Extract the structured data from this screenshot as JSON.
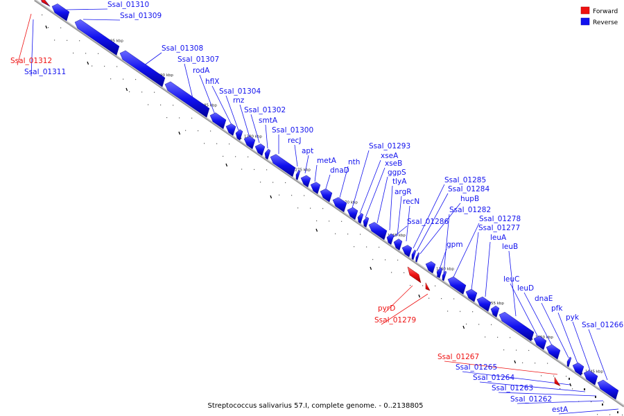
{
  "caption": "Streptococcus salivarius 57.I, complete genome. - 0..2138805",
  "legend": [
    {
      "label": "Forward",
      "color": "#ee1111"
    },
    {
      "label": "Reverse",
      "color": "#1111ee"
    }
  ],
  "colors": {
    "forward": "#ee1111",
    "reverse": "#1111ee",
    "backbone": "#a8a8a8"
  },
  "ticks": [
    {
      "label": "1295 kbp"
    },
    {
      "label": "1290 kbp"
    },
    {
      "label": "1285 kbp"
    },
    {
      "label": "1280 kbp"
    },
    {
      "label": "1275 kbp"
    },
    {
      "label": "1270 kbp"
    },
    {
      "label": "1265 kbp"
    },
    {
      "label": "1260 kbp"
    },
    {
      "label": "1255 kbp"
    },
    {
      "label": "1250 kbp"
    },
    {
      "label": "1245 kbp"
    }
  ],
  "genes": [
    {
      "name": "Ssal_01312",
      "strand": "forward"
    },
    {
      "name": "Ssal_01311",
      "strand": "reverse"
    },
    {
      "name": "Ssal_01310",
      "strand": "reverse"
    },
    {
      "name": "Ssal_01309",
      "strand": "reverse"
    },
    {
      "name": "Ssal_01308",
      "strand": "reverse"
    },
    {
      "name": "Ssal_01307",
      "strand": "reverse"
    },
    {
      "name": "rodA",
      "strand": "reverse"
    },
    {
      "name": "hflX",
      "strand": "reverse"
    },
    {
      "name": "Ssal_01304",
      "strand": "reverse"
    },
    {
      "name": "rnz",
      "strand": "reverse"
    },
    {
      "name": "Ssal_01302",
      "strand": "reverse"
    },
    {
      "name": "smtA",
      "strand": "reverse"
    },
    {
      "name": "Ssal_01300",
      "strand": "reverse"
    },
    {
      "name": "recJ",
      "strand": "reverse"
    },
    {
      "name": "apt",
      "strand": "reverse"
    },
    {
      "name": "metA",
      "strand": "reverse"
    },
    {
      "name": "dnaD",
      "strand": "reverse"
    },
    {
      "name": "nth",
      "strand": "reverse"
    },
    {
      "name": "Ssal_01293",
      "strand": "reverse"
    },
    {
      "name": "xseA",
      "strand": "reverse"
    },
    {
      "name": "xseB",
      "strand": "reverse"
    },
    {
      "name": "ggpS",
      "strand": "reverse"
    },
    {
      "name": "tlyA",
      "strand": "reverse"
    },
    {
      "name": "argR",
      "strand": "reverse"
    },
    {
      "name": "recN",
      "strand": "reverse"
    },
    {
      "name": "Ssal_01285",
      "strand": "reverse"
    },
    {
      "name": "Ssal_01284",
      "strand": "reverse"
    },
    {
      "name": "hupB",
      "strand": "reverse"
    },
    {
      "name": "Ssal_01286",
      "strand": "reverse"
    },
    {
      "name": "Ssal_01282",
      "strand": "reverse"
    },
    {
      "name": "gpm",
      "strand": "reverse"
    },
    {
      "name": "Ssal_01278",
      "strand": "reverse"
    },
    {
      "name": "Ssal_01277",
      "strand": "reverse"
    },
    {
      "name": "leuA",
      "strand": "reverse"
    },
    {
      "name": "leuB",
      "strand": "reverse"
    },
    {
      "name": "pyrD",
      "strand": "forward"
    },
    {
      "name": "Ssal_01279",
      "strand": "forward"
    },
    {
      "name": "leuC",
      "strand": "reverse"
    },
    {
      "name": "leuD",
      "strand": "reverse"
    },
    {
      "name": "dnaE",
      "strand": "reverse"
    },
    {
      "name": "pfk",
      "strand": "reverse"
    },
    {
      "name": "pyk",
      "strand": "reverse"
    },
    {
      "name": "Ssal_01266",
      "strand": "reverse"
    },
    {
      "name": "Ssal_01267",
      "strand": "forward"
    },
    {
      "name": "Ssal_01265",
      "strand": "reverse"
    },
    {
      "name": "Ssal_01264",
      "strand": "reverse"
    },
    {
      "name": "Ssal_01263",
      "strand": "reverse"
    },
    {
      "name": "Ssal_01262",
      "strand": "reverse"
    },
    {
      "name": "estA",
      "strand": "reverse"
    }
  ]
}
